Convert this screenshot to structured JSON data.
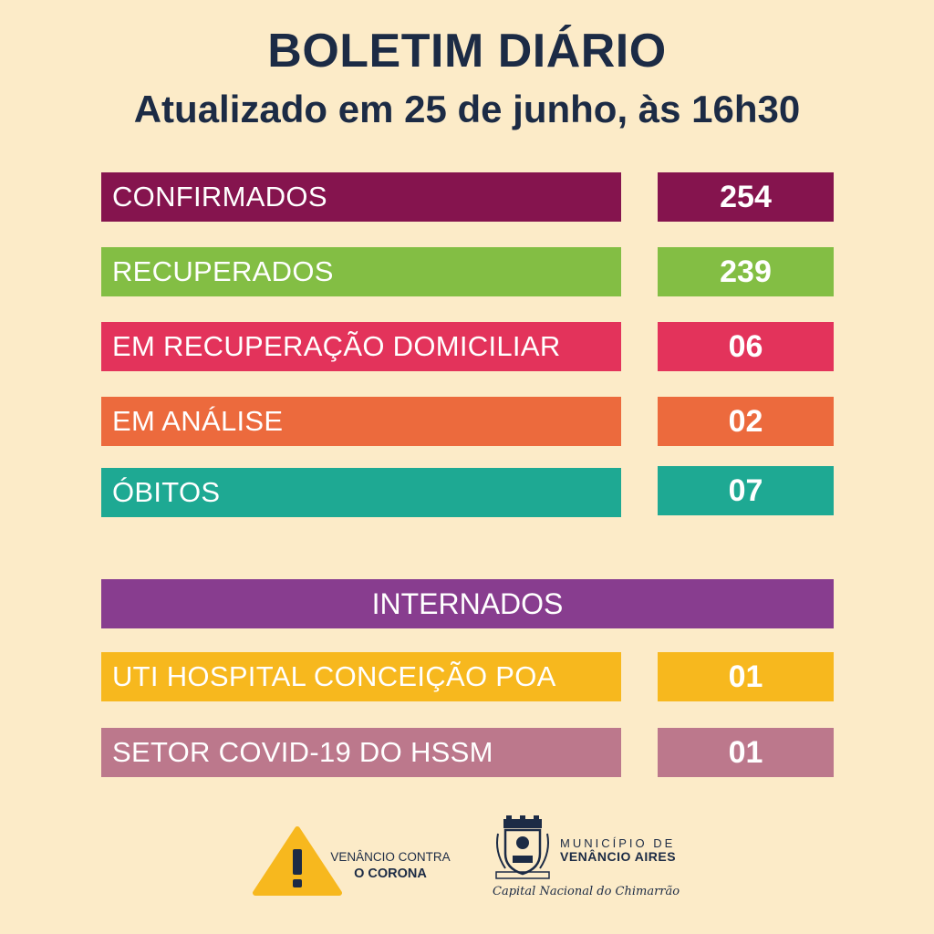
{
  "header": {
    "title": "BOLETIM DIÁRIO",
    "subtitle": "Atualizado em 25 de junho, às 16h30"
  },
  "stats": [
    {
      "label": "CONFIRMADOS",
      "value": "254",
      "color": "#85144e"
    },
    {
      "label": "RECUPERADOS",
      "value": "239",
      "color": "#83be44"
    },
    {
      "label": "EM RECUPERAÇÃO DOMICILIAR",
      "value": "06",
      "color": "#e3335b"
    },
    {
      "label": "EM ANÁLISE",
      "value": "02",
      "color": "#ec6a3d"
    },
    {
      "label": "ÓBITOS",
      "value": "07",
      "color": "#1ea993"
    }
  ],
  "hospital": {
    "header": "INTERNADOS",
    "header_color": "#883d8f",
    "rows": [
      {
        "label": "UTI HOSPITAL CONCEIÇÃO POA",
        "value": "01",
        "color": "#f7b81e"
      },
      {
        "label": "SETOR COVID-19 DO HSSM",
        "value": "01",
        "color": "#bc788c"
      }
    ]
  },
  "footer": {
    "warning_icon": "warning-triangle-icon",
    "warning_line1": "VENÂNCIO CONTRA",
    "warning_line2": "O CORONA",
    "crest_icon": "municipal-crest-icon",
    "municipality_top": "MUNICÍPIO DE",
    "municipality_name": "VENÂNCIO AIRES",
    "slogan": "Capital Nacional do Chimarrão"
  }
}
